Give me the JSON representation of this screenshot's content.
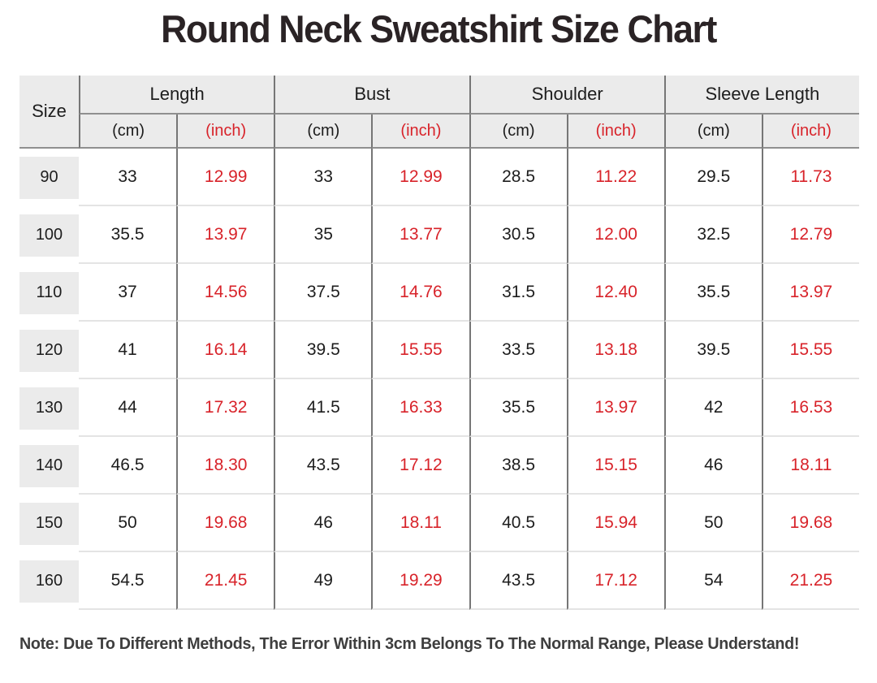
{
  "title": "Round Neck Sweatshirt Size Chart",
  "table": {
    "size_header": "Size",
    "groups": [
      {
        "label": "Length"
      },
      {
        "label": "Bust"
      },
      {
        "label": "Shoulder"
      },
      {
        "label": "Sleeve Length"
      }
    ],
    "unit_cm": "(cm)",
    "unit_inch": "(inch)",
    "rows": [
      {
        "size": "90",
        "cells": [
          "33",
          "12.99",
          "33",
          "12.99",
          "28.5",
          "11.22",
          "29.5",
          "11.73"
        ]
      },
      {
        "size": "100",
        "cells": [
          "35.5",
          "13.97",
          "35",
          "13.77",
          "30.5",
          "12.00",
          "32.5",
          "12.79"
        ]
      },
      {
        "size": "110",
        "cells": [
          "37",
          "14.56",
          "37.5",
          "14.76",
          "31.5",
          "12.40",
          "35.5",
          "13.97"
        ]
      },
      {
        "size": "120",
        "cells": [
          "41",
          "16.14",
          "39.5",
          "15.55",
          "33.5",
          "13.18",
          "39.5",
          "15.55"
        ]
      },
      {
        "size": "130",
        "cells": [
          "44",
          "17.32",
          "41.5",
          "16.33",
          "35.5",
          "13.97",
          "42",
          "16.53"
        ]
      },
      {
        "size": "140",
        "cells": [
          "46.5",
          "18.30",
          "43.5",
          "17.12",
          "38.5",
          "15.15",
          "46",
          "18.11"
        ]
      },
      {
        "size": "150",
        "cells": [
          "50",
          "19.68",
          "46",
          "18.11",
          "40.5",
          "15.94",
          "50",
          "19.68"
        ]
      },
      {
        "size": "160",
        "cells": [
          "54.5",
          "21.45",
          "49",
          "19.29",
          "43.5",
          "17.12",
          "54",
          "21.25"
        ]
      }
    ]
  },
  "note": "Note: Due To Different Methods, The Error Within 3cm Belongs To The Normal Range, Please Understand!",
  "chart_data": {
    "type": "table",
    "title": "Round Neck Sweatshirt Size Chart",
    "column_groups": [
      "Length",
      "Bust",
      "Shoulder",
      "Sleeve Length"
    ],
    "columns": [
      "Size",
      "Length (cm)",
      "Length (inch)",
      "Bust (cm)",
      "Bust (inch)",
      "Shoulder (cm)",
      "Shoulder (inch)",
      "Sleeve Length (cm)",
      "Sleeve Length (inch)"
    ],
    "rows": [
      [
        90,
        33,
        12.99,
        33,
        12.99,
        28.5,
        11.22,
        29.5,
        11.73
      ],
      [
        100,
        35.5,
        13.97,
        35,
        13.77,
        30.5,
        12.0,
        32.5,
        12.79
      ],
      [
        110,
        37,
        14.56,
        37.5,
        14.76,
        31.5,
        12.4,
        35.5,
        13.97
      ],
      [
        120,
        41,
        16.14,
        39.5,
        15.55,
        33.5,
        13.18,
        39.5,
        15.55
      ],
      [
        130,
        44,
        17.32,
        41.5,
        16.33,
        35.5,
        13.97,
        42,
        16.53
      ],
      [
        140,
        46.5,
        18.3,
        43.5,
        17.12,
        38.5,
        15.15,
        46,
        18.11
      ],
      [
        150,
        50,
        19.68,
        46,
        18.11,
        40.5,
        15.94,
        50,
        19.68
      ],
      [
        160,
        54.5,
        21.45,
        49,
        19.29,
        43.5,
        17.12,
        54,
        21.25
      ]
    ],
    "note": "Note: Due To Different Methods, The Error Within 3cm Belongs To The Normal Range, Please Understand!"
  },
  "colors": {
    "accent-red": "#d8232a",
    "text-dark": "#1d1d1d",
    "title": "#2a2325",
    "header-bg": "#ebebeb",
    "size-cell-bg": "#ebebeb",
    "line-dark": "#767676",
    "line-mid": "#8f8f8f",
    "line-light": "#e4e4e4",
    "note-text": "#3e3e3e"
  }
}
